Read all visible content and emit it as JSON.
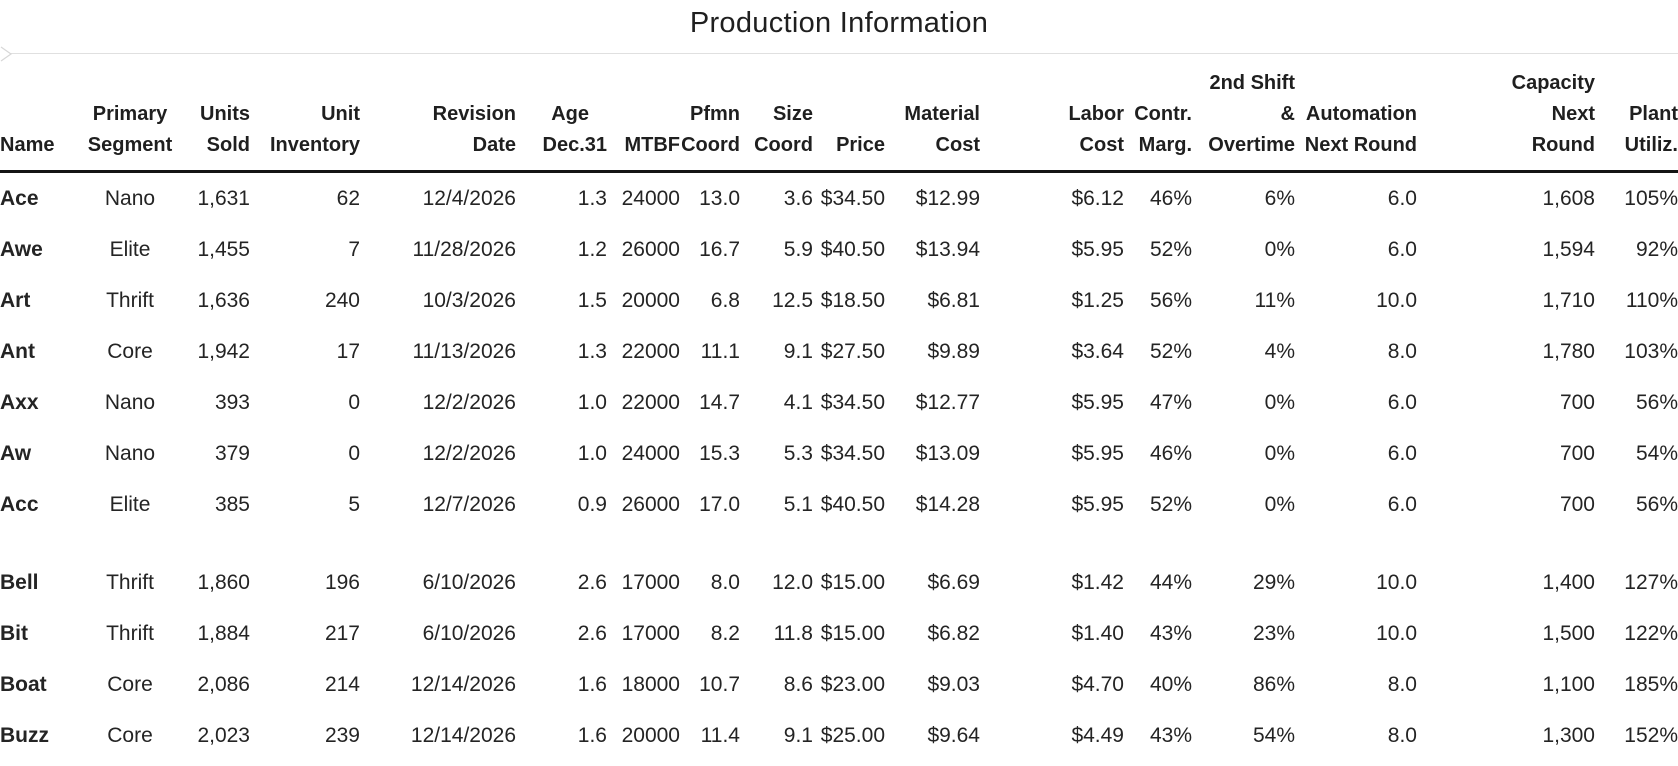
{
  "title": "Production Information",
  "colors": {
    "text": "#242424",
    "header_rule": "#141414",
    "panel_border": "#e0e0e0"
  },
  "table": {
    "columns": [
      {
        "key": "name",
        "lines": [
          "",
          "",
          "Name"
        ],
        "align": "left"
      },
      {
        "key": "primary_segment",
        "lines": [
          "",
          "Primary",
          "Segment"
        ],
        "align": "center"
      },
      {
        "key": "units_sold",
        "lines": [
          "",
          "Units",
          "Sold"
        ],
        "align": "right"
      },
      {
        "key": "unit_inventory",
        "lines": [
          "",
          "Unit",
          "Inventory"
        ],
        "align": "right"
      },
      {
        "key": "revision_date",
        "lines": [
          "",
          "Revision",
          "Date"
        ],
        "align": "right"
      },
      {
        "key": "age_dec31",
        "lines": [
          "",
          "Age",
          "Dec.31"
        ],
        "align": "right"
      },
      {
        "key": "mtbf",
        "lines": [
          "",
          "",
          "MTBF"
        ],
        "align": "right"
      },
      {
        "key": "pfmn_coord",
        "lines": [
          "",
          "Pfmn",
          "Coord"
        ],
        "align": "right"
      },
      {
        "key": "size_coord",
        "lines": [
          "",
          "Size",
          "Coord"
        ],
        "align": "right"
      },
      {
        "key": "price",
        "lines": [
          "",
          "",
          "Price"
        ],
        "align": "right"
      },
      {
        "key": "material_cost",
        "lines": [
          "",
          "Material",
          "Cost"
        ],
        "align": "right"
      },
      {
        "key": "labor_cost",
        "lines": [
          "",
          "Labor",
          "Cost"
        ],
        "align": "right"
      },
      {
        "key": "contr_marg",
        "lines": [
          "",
          "Contr.",
          "Marg."
        ],
        "align": "right"
      },
      {
        "key": "second_shift_overtime",
        "lines": [
          "2nd Shift",
          "&",
          "Overtime"
        ],
        "align": "right"
      },
      {
        "key": "automation_next_round",
        "lines": [
          "",
          "Automation",
          "Next Round"
        ],
        "align": "right"
      },
      {
        "key": "capacity_next_round",
        "lines": [
          "Capacity",
          "Next",
          "Round"
        ],
        "align": "right"
      },
      {
        "key": "plant_utiliz",
        "lines": [
          "",
          "Plant",
          "Utiliz."
        ],
        "align": "right"
      }
    ],
    "groups": [
      {
        "rows": [
          [
            "Ace",
            "Nano",
            "1,631",
            "62",
            "12/4/2026",
            "1.3",
            "24000",
            "13.0",
            "3.6",
            "$34.50",
            "$12.99",
            "$6.12",
            "46%",
            "6%",
            "6.0",
            "1,608",
            "105%"
          ],
          [
            "Awe",
            "Elite",
            "1,455",
            "7",
            "11/28/2026",
            "1.2",
            "26000",
            "16.7",
            "5.9",
            "$40.50",
            "$13.94",
            "$5.95",
            "52%",
            "0%",
            "6.0",
            "1,594",
            "92%"
          ],
          [
            "Art",
            "Thrift",
            "1,636",
            "240",
            "10/3/2026",
            "1.5",
            "20000",
            "6.8",
            "12.5",
            "$18.50",
            "$6.81",
            "$1.25",
            "56%",
            "11%",
            "10.0",
            "1,710",
            "110%"
          ],
          [
            "Ant",
            "Core",
            "1,942",
            "17",
            "11/13/2026",
            "1.3",
            "22000",
            "11.1",
            "9.1",
            "$27.50",
            "$9.89",
            "$3.64",
            "52%",
            "4%",
            "8.0",
            "1,780",
            "103%"
          ],
          [
            "Axx",
            "Nano",
            "393",
            "0",
            "12/2/2026",
            "1.0",
            "22000",
            "14.7",
            "4.1",
            "$34.50",
            "$12.77",
            "$5.95",
            "47%",
            "0%",
            "6.0",
            "700",
            "56%"
          ],
          [
            "Aw",
            "Nano",
            "379",
            "0",
            "12/2/2026",
            "1.0",
            "24000",
            "15.3",
            "5.3",
            "$34.50",
            "$13.09",
            "$5.95",
            "46%",
            "0%",
            "6.0",
            "700",
            "54%"
          ],
          [
            "Acc",
            "Elite",
            "385",
            "5",
            "12/7/2026",
            "0.9",
            "26000",
            "17.0",
            "5.1",
            "$40.50",
            "$14.28",
            "$5.95",
            "52%",
            "0%",
            "6.0",
            "700",
            "56%"
          ]
        ]
      },
      {
        "rows": [
          [
            "Bell",
            "Thrift",
            "1,860",
            "196",
            "6/10/2026",
            "2.6",
            "17000",
            "8.0",
            "12.0",
            "$15.00",
            "$6.69",
            "$1.42",
            "44%",
            "29%",
            "10.0",
            "1,400",
            "127%"
          ],
          [
            "Bit",
            "Thrift",
            "1,884",
            "217",
            "6/10/2026",
            "2.6",
            "17000",
            "8.2",
            "11.8",
            "$15.00",
            "$6.82",
            "$1.40",
            "43%",
            "23%",
            "10.0",
            "1,500",
            "122%"
          ],
          [
            "Boat",
            "Core",
            "2,086",
            "214",
            "12/14/2026",
            "1.6",
            "18000",
            "10.7",
            "8.6",
            "$23.00",
            "$9.03",
            "$4.70",
            "40%",
            "86%",
            "8.0",
            "1,100",
            "185%"
          ],
          [
            "Buzz",
            "Core",
            "2,023",
            "239",
            "12/14/2026",
            "1.6",
            "20000",
            "11.4",
            "9.1",
            "$25.00",
            "$9.64",
            "$4.49",
            "43%",
            "54%",
            "8.0",
            "1,300",
            "152%"
          ]
        ]
      }
    ]
  }
}
